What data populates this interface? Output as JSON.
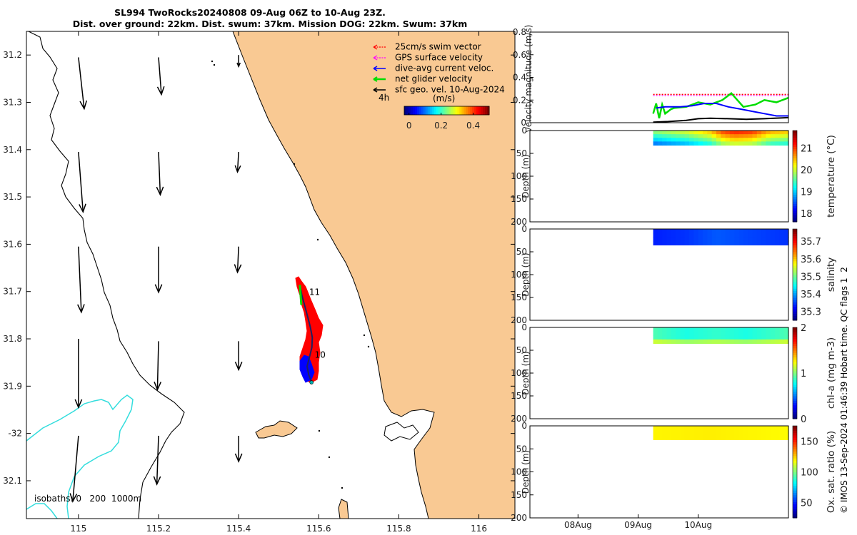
{
  "title": {
    "line1": "SL994 TwoRocks20240808 09-Aug 06Z to 10-Aug 23Z.",
    "line2": "Dist. over ground: 22km. Dist. swum: 37km. Mission DOG: 22km. Swum: 37km"
  },
  "colors": {
    "land": "#f9c993",
    "swim": "#ff0000",
    "gps": "#ff00ff",
    "dive": "#0000ff",
    "net": "#00dd00",
    "sfc": "#000000",
    "isobath": "#33dddd"
  },
  "chart_data": [
    {
      "type": "map",
      "name": "track-map",
      "xlim": [
        114.87,
        116.09
      ],
      "ylim": [
        -32.18,
        -31.15
      ],
      "xticks": [
        115,
        115.2,
        115.4,
        115.6,
        115.8,
        116
      ],
      "xtick_labels": [
        "115",
        "115.2",
        "115.4",
        "115.6",
        "115.8",
        "116"
      ],
      "yticks": [
        -31.2,
        -31.3,
        -31.4,
        -31.5,
        -31.6,
        -31.7,
        -31.8,
        -31.9,
        -32,
        -32.1
      ],
      "ytick_labels": [
        "31.2",
        "31.3",
        "31.4",
        "31.5",
        "31.6",
        "31.7",
        "31.8",
        "31.9",
        "-32",
        "32.1"
      ],
      "legend": [
        {
          "label": "25cm/s swim vector",
          "color": "#ff0000",
          "style": "dotted-arrow"
        },
        {
          "label": "GPS surface velocity",
          "color": "#ff00ff",
          "style": "dotted-arrow"
        },
        {
          "label": "dive-avg current veloc.",
          "color": "#0000ff",
          "style": "arrow"
        },
        {
          "label": "net glider velocity",
          "color": "#00dd00",
          "style": "arrow"
        },
        {
          "label": "sfc geo. vel. 10-Aug-2024",
          "color": "#000000",
          "style": "arrow"
        }
      ],
      "scale_label": "4h",
      "colorbar": {
        "label": "(m/s)",
        "ticks": [
          0,
          0.2,
          0.4
        ],
        "tick_labels": [
          "0",
          "0.2",
          "0.4"
        ],
        "range": [
          -0.03,
          0.5
        ]
      },
      "isobaths_label": "isobaths: 0   200  1000m",
      "track_labels": [
        {
          "text": "11",
          "lon": 115.576,
          "lat": -31.707
        },
        {
          "text": "10",
          "lon": 115.59,
          "lat": -31.84
        }
      ],
      "track": [
        [
          115.553,
          -31.686
        ],
        [
          115.558,
          -31.708
        ],
        [
          115.565,
          -31.73
        ],
        [
          115.572,
          -31.752
        ],
        [
          115.579,
          -31.775
        ],
        [
          115.584,
          -31.797
        ],
        [
          115.583,
          -31.818
        ],
        [
          115.577,
          -31.838
        ],
        [
          115.571,
          -31.858
        ],
        [
          115.575,
          -31.876
        ],
        [
          115.582,
          -31.892
        ]
      ],
      "geo_vectors": [
        {
          "lon": 115.0,
          "lat": -31.205,
          "u": 0.01,
          "v": -0.09
        },
        {
          "lon": 115.2,
          "lat": -31.205,
          "u": 0.005,
          "v": -0.065
        },
        {
          "lon": 115.4,
          "lat": -31.2,
          "u": 0.0,
          "v": -0.02
        },
        {
          "lon": 115.0,
          "lat": -31.405,
          "u": 0.008,
          "v": -0.105
        },
        {
          "lon": 115.2,
          "lat": -31.405,
          "u": 0.003,
          "v": -0.075
        },
        {
          "lon": 115.4,
          "lat": -31.405,
          "u": -0.002,
          "v": -0.035
        },
        {
          "lon": 115.0,
          "lat": -31.605,
          "u": 0.005,
          "v": -0.115
        },
        {
          "lon": 115.2,
          "lat": -31.605,
          "u": 0.0,
          "v": -0.08
        },
        {
          "lon": 115.4,
          "lat": -31.605,
          "u": -0.002,
          "v": -0.045
        },
        {
          "lon": 115.0,
          "lat": -31.8,
          "u": 0.0,
          "v": -0.12
        },
        {
          "lon": 115.2,
          "lat": -31.805,
          "u": -0.002,
          "v": -0.085
        },
        {
          "lon": 115.4,
          "lat": -31.805,
          "u": 0.0,
          "v": -0.05
        },
        {
          "lon": 115.0,
          "lat": -32.005,
          "u": -0.01,
          "v": -0.115
        },
        {
          "lon": 115.2,
          "lat": -32.005,
          "u": -0.003,
          "v": -0.085
        },
        {
          "lon": 115.4,
          "lat": -32.005,
          "u": 0.0,
          "v": -0.045
        }
      ]
    },
    {
      "type": "line",
      "name": "velocity-panel",
      "ylabel": "velocity magnitude (m/s)",
      "ylim": [
        0,
        0.8
      ],
      "yticks": [
        0,
        0.2,
        0.4,
        0.6,
        0.8
      ],
      "ytick_labels": [
        "0",
        "0.2",
        "0.4",
        "0.6",
        "0.8"
      ],
      "xlim": [
        -1.8,
        2.5
      ],
      "series": [
        {
          "name": "swim",
          "color": "#ff0000",
          "style": "dotted",
          "x": [
            0.25,
            2.5
          ],
          "y": [
            0.25,
            0.25
          ]
        },
        {
          "name": "gps",
          "color": "#ff00ff",
          "style": "dotted",
          "x": [
            0.25,
            2.5
          ],
          "y": [
            0.24,
            0.24
          ]
        },
        {
          "name": "net glider",
          "color": "#00dd00",
          "x": [
            0.25,
            0.3,
            0.35,
            0.4,
            0.45,
            0.55,
            0.6,
            0.8,
            1.0,
            1.2,
            1.4,
            1.55,
            1.75,
            1.95,
            2.1,
            2.3,
            2.5
          ],
          "y": [
            0.08,
            0.17,
            0.04,
            0.16,
            0.08,
            0.12,
            0.13,
            0.14,
            0.18,
            0.16,
            0.2,
            0.26,
            0.14,
            0.16,
            0.2,
            0.18,
            0.22
          ]
        },
        {
          "name": "dive-avg",
          "color": "#0000ff",
          "x": [
            0.3,
            0.45,
            0.7,
            0.9,
            1.1,
            1.3,
            1.5,
            1.7,
            1.9,
            2.1,
            2.3,
            2.5
          ],
          "y": [
            0.13,
            0.14,
            0.14,
            0.15,
            0.17,
            0.17,
            0.14,
            0.12,
            0.1,
            0.08,
            0.06,
            0.06
          ]
        },
        {
          "name": "sfc geo",
          "color": "#000000",
          "x": [
            0.25,
            0.5,
            0.8,
            1.0,
            1.2,
            1.5,
            1.8,
            2.1,
            2.5
          ],
          "y": [
            0.005,
            0.01,
            0.02,
            0.035,
            0.04,
            0.035,
            0.03,
            0.035,
            0.045
          ]
        }
      ]
    },
    {
      "type": "heatmap",
      "name": "temperature-panel",
      "ylabel": "Depth (m)",
      "ylim": [
        200,
        0
      ],
      "yticks": [
        0,
        50,
        100,
        150,
        200
      ],
      "cb_label": "temperature (°C)",
      "cb_range": [
        17.6,
        21.8
      ],
      "cb_ticks": [
        18,
        19,
        20,
        21
      ],
      "cb_tick_labels": [
        "18",
        "19",
        "20",
        "21"
      ],
      "data_x": [
        0.25,
        2.5
      ],
      "data_depth": [
        0,
        32
      ],
      "value_profile": [
        [
          0.25,
          19.7
        ],
        [
          0.8,
          20.0
        ],
        [
          1.2,
          20.4
        ],
        [
          1.4,
          20.9
        ],
        [
          1.6,
          21.1
        ],
        [
          1.9,
          21.0
        ],
        [
          2.2,
          20.5
        ],
        [
          2.5,
          20.4
        ]
      ]
    },
    {
      "type": "heatmap",
      "name": "salinity-panel",
      "ylabel": "Depth (m)",
      "ylim": [
        200,
        0
      ],
      "yticks": [
        0,
        50,
        100,
        150,
        200
      ],
      "cb_label": "salinity",
      "cb_range": [
        35.25,
        35.77
      ],
      "cb_ticks": [
        35.3,
        35.4,
        35.5,
        35.6,
        35.7
      ],
      "cb_tick_labels": [
        "35.3",
        "35.4",
        "35.5",
        "35.6",
        "35.7"
      ],
      "data_x": [
        0.25,
        2.5
      ],
      "data_depth": [
        0,
        35
      ],
      "value_profile": [
        [
          0.25,
          35.33
        ],
        [
          0.8,
          35.34
        ],
        [
          1.3,
          35.36
        ],
        [
          1.8,
          35.35
        ],
        [
          2.5,
          35.34
        ]
      ]
    },
    {
      "type": "heatmap",
      "name": "chla-panel",
      "ylabel": "Depth (m)",
      "ylim": [
        200,
        0
      ],
      "yticks": [
        0,
        50,
        100,
        150,
        200
      ],
      "cb_label": "chl-a (mg m-3)",
      "cb_range": [
        0,
        2
      ],
      "cb_ticks": [
        0,
        1,
        2
      ],
      "cb_tick_labels": [
        "0",
        "1",
        "2"
      ],
      "data_x": [
        0.25,
        2.5
      ],
      "data_depth": [
        0,
        35
      ],
      "value_profile": [
        [
          0.25,
          0.9
        ],
        [
          0.8,
          0.8
        ],
        [
          1.3,
          0.85
        ],
        [
          1.8,
          0.8
        ],
        [
          2.5,
          0.9
        ]
      ]
    },
    {
      "type": "heatmap",
      "name": "oxygen-panel",
      "ylabel": "Depth (m)",
      "ylim": [
        200,
        0
      ],
      "yticks": [
        0,
        50,
        100,
        150,
        200
      ],
      "cb_label": "Ox. sat. ratio (%)",
      "cb_range": [
        25,
        175
      ],
      "cb_ticks": [
        50,
        100,
        150
      ],
      "cb_tick_labels": [
        "50",
        "100",
        "150"
      ],
      "data_x": [
        0.25,
        2.5
      ],
      "data_depth": [
        0,
        30
      ],
      "value_profile": [
        [
          0.25,
          120
        ],
        [
          1.2,
          121
        ],
        [
          2.5,
          119
        ]
      ],
      "xticks": [
        -1,
        0,
        1
      ],
      "xtick_labels": [
        "08Aug",
        "09Aug",
        "10Aug"
      ]
    }
  ],
  "footer": "© IMOS 13-Sep-2024 01:46:39 Hobart time. QC flags 1  2"
}
